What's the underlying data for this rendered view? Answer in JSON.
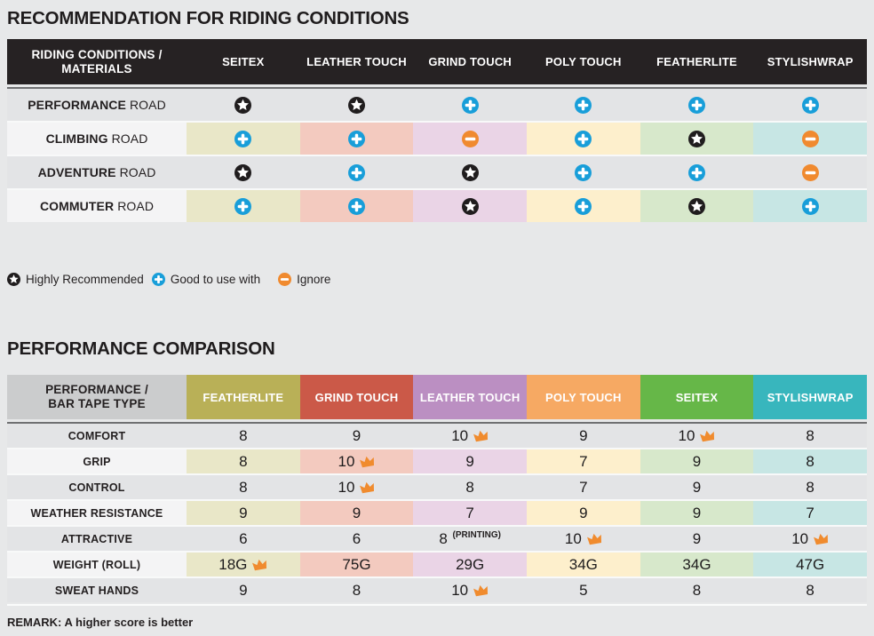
{
  "recommendation": {
    "title": "RECOMMENDATION FOR RIDING CONDITIONS",
    "corner": {
      "line1": "RIDING CONDITIONS /",
      "line2": "MATERIALS"
    },
    "columns": [
      "SEITEX",
      "LEATHER TOUCH",
      "GRIND TOUCH",
      "POLY TOUCH",
      "FEATHERLITE",
      "STYLISHWRAP"
    ],
    "rows": [
      {
        "label_strong": "PERFORMANCE",
        "label_rest": "ROAD",
        "tinted": false,
        "cells": [
          "star",
          "star",
          "plus",
          "plus",
          "plus",
          "plus"
        ]
      },
      {
        "label_strong": "CLIMBING",
        "label_rest": "ROAD",
        "tinted": true,
        "cells": [
          "plus",
          "plus",
          "minus",
          "plus",
          "star",
          "minus"
        ]
      },
      {
        "label_strong": "ADVENTURE",
        "label_rest": "ROAD",
        "tinted": false,
        "cells": [
          "star",
          "plus",
          "star",
          "plus",
          "plus",
          "minus"
        ]
      },
      {
        "label_strong": "COMMUTER",
        "label_rest": "ROAD",
        "tinted": true,
        "cells": [
          "plus",
          "plus",
          "star",
          "plus",
          "star",
          "plus"
        ]
      }
    ],
    "legend": [
      {
        "icon": "star",
        "label": "Highly Recommended"
      },
      {
        "icon": "plus",
        "label": "Good to use with"
      },
      {
        "icon": "minus",
        "label": "Ignore"
      }
    ]
  },
  "performance": {
    "title": "PERFORMANCE COMPARISON",
    "corner": {
      "line1": "PERFORMANCE /",
      "line2": "BAR TAPE TYPE"
    },
    "columns": [
      {
        "label": "FEATHERLITE",
        "color": "#b9b057"
      },
      {
        "label": "GRIND TOUCH",
        "color": "#cb5948"
      },
      {
        "label": "LEATHER TOUCH",
        "color": "#bb8fc2"
      },
      {
        "label": "POLY TOUCH",
        "color": "#f6a963"
      },
      {
        "label": "SEITEX",
        "color": "#66b748"
      },
      {
        "label": "STYLISHWRAP",
        "color": "#38b6bd"
      }
    ],
    "rows": [
      {
        "label": "COMFORT",
        "tinted": false,
        "cells": [
          {
            "value": "8"
          },
          {
            "value": "9"
          },
          {
            "value": "10",
            "crown": true
          },
          {
            "value": "9"
          },
          {
            "value": "10",
            "crown": true
          },
          {
            "value": "8"
          }
        ]
      },
      {
        "label": "GRIP",
        "tinted": true,
        "cells": [
          {
            "value": "8"
          },
          {
            "value": "10",
            "crown": true
          },
          {
            "value": "9"
          },
          {
            "value": "7"
          },
          {
            "value": "9"
          },
          {
            "value": "8"
          }
        ]
      },
      {
        "label": "CONTROL",
        "tinted": false,
        "cells": [
          {
            "value": "8"
          },
          {
            "value": "10",
            "crown": true
          },
          {
            "value": "8"
          },
          {
            "value": "7"
          },
          {
            "value": "9"
          },
          {
            "value": "8"
          }
        ]
      },
      {
        "label": "WEATHER RESISTANCE",
        "tinted": true,
        "cells": [
          {
            "value": "9"
          },
          {
            "value": "9"
          },
          {
            "value": "7"
          },
          {
            "value": "9"
          },
          {
            "value": "9"
          },
          {
            "value": "7"
          }
        ]
      },
      {
        "label": "ATTRACTIVE",
        "tinted": false,
        "cells": [
          {
            "value": "6"
          },
          {
            "value": "6"
          },
          {
            "value": "8",
            "note": "(PRINTING)"
          },
          {
            "value": "10",
            "crown": true
          },
          {
            "value": "9"
          },
          {
            "value": "10",
            "crown": true
          }
        ]
      },
      {
        "label": "WEIGHT (ROLL)",
        "tinted": true,
        "cells": [
          {
            "value": "18G",
            "crown": true
          },
          {
            "value": "75G"
          },
          {
            "value": "29G"
          },
          {
            "value": "34G"
          },
          {
            "value": "34G"
          },
          {
            "value": "47G"
          }
        ]
      },
      {
        "label": "SWEAT HANDS",
        "tinted": false,
        "cells": [
          {
            "value": "9"
          },
          {
            "value": "8"
          },
          {
            "value": "10",
            "crown": true
          },
          {
            "value": "5"
          },
          {
            "value": "8"
          },
          {
            "value": "8"
          }
        ]
      }
    ],
    "remark": "REMARK: A higher score is better"
  },
  "palette": {
    "page_bg": "#e7e8e9",
    "header_dark": "#262223",
    "plain_row_bg": "#e3e4e6",
    "tinted_label_bg": "#f4f4f5",
    "row_separator": "#f8f9f9",
    "rule_light": "#fafbfb",
    "corner_gray": "#cbcccd",
    "blue": "#189ed9",
    "orange": "#f08a2f",
    "icon_black": "#201d1e",
    "crown": "#f08b2e",
    "column_tints": [
      "#e9e7c8",
      "#f3cabf",
      "#ead4e6",
      "#fdefcc",
      "#d7e8cb",
      "#c7e6e4"
    ]
  }
}
